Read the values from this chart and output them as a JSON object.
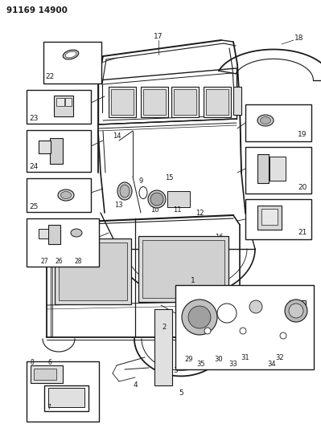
{
  "title": "91169 14900",
  "bg": "#ffffff",
  "lc": "#1a1a1a",
  "fig_w": 3.99,
  "fig_h": 5.33,
  "dpi": 100
}
